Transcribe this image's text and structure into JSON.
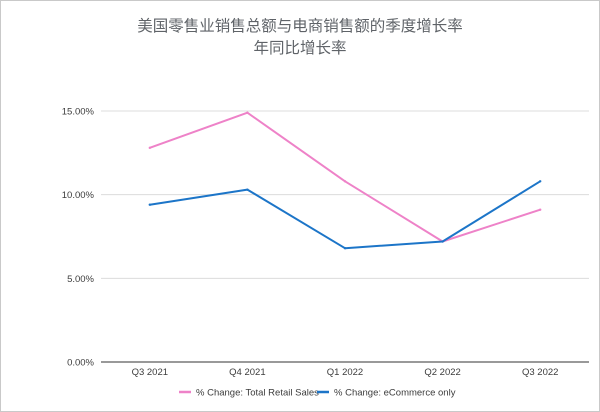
{
  "chart_data": {
    "type": "line",
    "title": "美国零售业销售总额与电商销售额的季度增长率",
    "subtitle": "年同比增长率",
    "categories": [
      "Q3 2021",
      "Q4 2021",
      "Q1 2022",
      "Q2 2022",
      "Q3 2022"
    ],
    "series": [
      {
        "name": "% Change: Total Retail Sales",
        "color": "#ee82c8",
        "values": [
          12.8,
          14.9,
          10.8,
          7.2,
          9.1
        ]
      },
      {
        "name": "% Change: eCommerce only",
        "color": "#1c75c8",
        "values": [
          9.4,
          10.3,
          6.8,
          7.2,
          10.8
        ]
      }
    ],
    "y_ticks": [
      "0.00%",
      "5.00%",
      "10.00%",
      "15.00%"
    ],
    "ylim": [
      0,
      15
    ],
    "grid": true,
    "legend_position": "bottom"
  }
}
